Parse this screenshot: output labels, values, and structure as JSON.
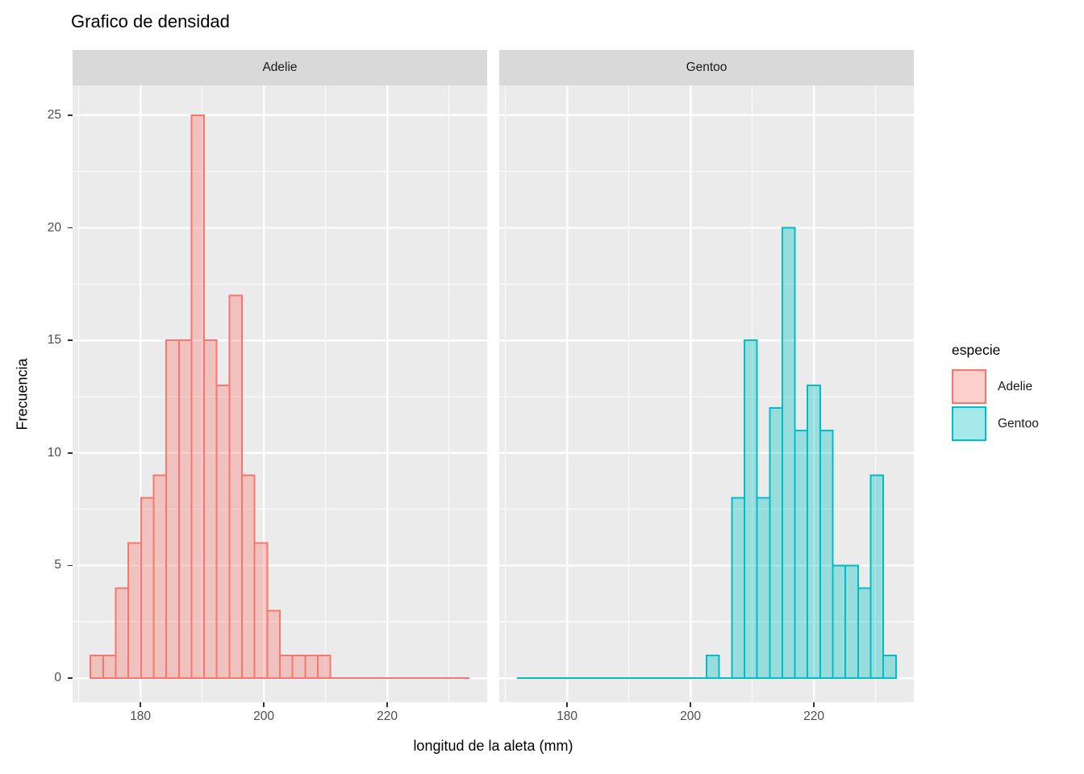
{
  "title": "Grafico de densidad",
  "axes": {
    "x_title": "longitud de la aleta (mm)",
    "y_title": "Frecuencia"
  },
  "legend": {
    "title": "especie",
    "items": [
      {
        "label": "Adelie",
        "color": "#F8766D"
      },
      {
        "label": "Gentoo",
        "color": "#00BFC4"
      }
    ]
  },
  "colors": {
    "panel_background": "#EBEBEB",
    "strip_background": "#D9D9D9",
    "gridline": "#FFFFFF",
    "tick_mark": "#333333",
    "tick_label": "#4D4D4D",
    "adelie": "#F8766D",
    "gentoo": "#00BFC4"
  },
  "chart_data": {
    "type": "bar",
    "subtype": "faceted-histogram",
    "title": "Grafico de densidad",
    "xlabel": "longitud de la aleta (mm)",
    "ylabel": "Frecuencia",
    "legend_title": "especie",
    "legend_position": "right",
    "grid": "on",
    "x_domain": [
      169.0,
      236.2
    ],
    "y_domain": [
      -1.07,
      26.32
    ],
    "x_ticks": [
      180,
      200,
      220
    ],
    "x_minor_gridlines": [
      170,
      190,
      210,
      230
    ],
    "y_ticks": [
      0,
      5,
      10,
      15,
      20,
      25
    ],
    "bin_start_mm": 171.9,
    "bin_width_mm": 2.0467,
    "facets": [
      {
        "label": "Adelie",
        "color": "#F8766D",
        "counts": [
          1,
          1,
          4,
          6,
          8,
          9,
          15,
          15,
          25,
          15,
          13,
          17,
          9,
          6,
          3,
          1,
          1,
          1,
          1,
          0,
          0,
          0,
          0,
          0,
          0,
          0,
          0,
          0,
          0,
          0
        ]
      },
      {
        "label": "Gentoo",
        "color": "#00BFC4",
        "counts": [
          0,
          0,
          0,
          0,
          0,
          0,
          0,
          0,
          0,
          0,
          0,
          0,
          0,
          0,
          0,
          1,
          0,
          8,
          15,
          8,
          12,
          20,
          11,
          13,
          11,
          5,
          5,
          4,
          9,
          1
        ]
      }
    ]
  }
}
